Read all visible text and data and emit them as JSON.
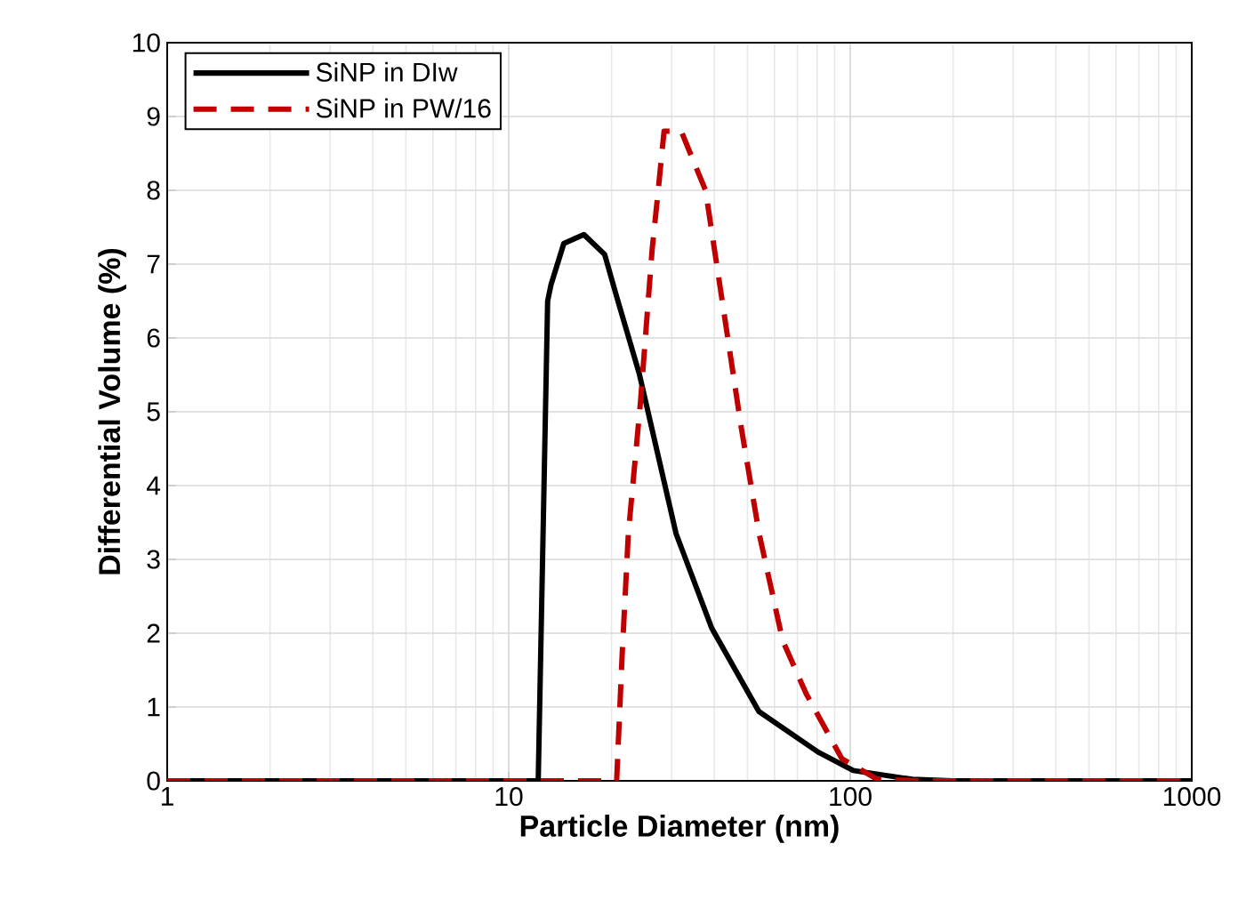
{
  "chart_data": {
    "type": "line",
    "xlabel": "Particle Diameter (nm)",
    "ylabel": "Differential Volume (%)",
    "log": "x",
    "grid": true,
    "legend": "top left",
    "marker": "none",
    "xlim": [
      1,
      1000
    ],
    "xticks": [
      1,
      10,
      100,
      1000
    ],
    "ylim": [
      0,
      10
    ],
    "yticks": [
      0,
      1,
      2,
      3,
      4,
      5,
      6,
      7,
      8,
      9,
      10
    ],
    "series": [
      {
        "name": "SiNP in DIw",
        "color": "#000000",
        "line_style": "solid",
        "x": [
          1,
          12.2,
          13.0,
          13.3,
          14.5,
          16.6,
          19.1,
          20.7,
          24.1,
          30.9,
          39.3,
          54,
          80.5,
          102,
          152,
          200,
          1000
        ],
        "values": [
          0,
          0,
          6.5,
          6.72,
          7.28,
          7.4,
          7.13,
          6.56,
          5.52,
          3.35,
          2.07,
          0.94,
          0.39,
          0.14,
          0.02,
          0,
          0
        ]
      },
      {
        "name": "SiNP in PW/16",
        "color": "#c00000",
        "line_style": "dashed",
        "x": [
          1,
          20.7,
          21.5,
          22.4,
          24.3,
          26.3,
          27.4,
          28.5,
          32,
          37.7,
          42.5,
          47.9,
          54.1,
          63.4,
          74.3,
          94.5,
          120,
          160,
          1000
        ],
        "values": [
          0,
          0,
          1.74,
          3.35,
          5.12,
          7.2,
          8.0,
          8.8,
          8.8,
          8.0,
          6.4,
          4.8,
          3.35,
          1.9,
          1.18,
          0.3,
          0.02,
          0,
          0
        ]
      }
    ]
  }
}
